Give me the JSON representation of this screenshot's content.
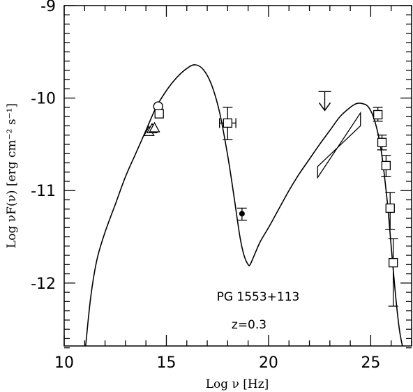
{
  "chart_data": {
    "type": "scatter",
    "title": "",
    "xlabel": "Log ν [Hz]",
    "ylabel": "Log νF(ν) [erg cm⁻² s⁻¹]",
    "xlim": [
      10,
      27
    ],
    "ylim": [
      -12.68,
      -9
    ],
    "x_ticks": [
      "10",
      "15",
      "20",
      "25"
    ],
    "y_ticks": [
      "-9",
      "-10",
      "-11",
      "-12"
    ],
    "annotations": [
      "PG 1553+113",
      "z=0.3"
    ],
    "model_curve": {
      "x": [
        11.05,
        11.3,
        11.6,
        12.0,
        12.5,
        13.0,
        13.5,
        14.0,
        14.5,
        15.0,
        15.5,
        16.0,
        16.4,
        16.8,
        17.2,
        17.6,
        18.0,
        18.3,
        18.6,
        18.8,
        19.0,
        19.1,
        19.3,
        19.6,
        20.0,
        20.5,
        21.0,
        21.5,
        22.0,
        22.5,
        23.0,
        23.5,
        24.0,
        24.3,
        24.6,
        24.9,
        25.2,
        25.5,
        25.8,
        26.0,
        26.2,
        26.4,
        26.55
      ],
      "y": [
        -12.68,
        -12.15,
        -11.75,
        -11.45,
        -11.15,
        -10.85,
        -10.6,
        -10.35,
        -10.1,
        -9.92,
        -9.78,
        -9.68,
        -9.64,
        -9.69,
        -9.85,
        -10.15,
        -10.62,
        -11.05,
        -11.5,
        -11.7,
        -11.8,
        -11.8,
        -11.7,
        -11.55,
        -11.4,
        -11.2,
        -11.0,
        -10.82,
        -10.66,
        -10.5,
        -10.35,
        -10.2,
        -10.1,
        -10.06,
        -10.06,
        -10.1,
        -10.25,
        -10.55,
        -11.1,
        -11.6,
        -12.1,
        -12.5,
        -12.68
      ]
    },
    "series": [
      {
        "name": "",
        "marker": "triangle",
        "points": [
          [
            14.15,
            -10.36
          ],
          [
            14.3,
            -10.33
          ],
          [
            14.42,
            -10.32
          ]
        ]
      },
      {
        "name": "",
        "marker": "circle-open",
        "points": [
          [
            14.6,
            -10.09
          ]
        ]
      },
      {
        "name": "",
        "marker": "square",
        "points": [
          [
            14.65,
            -10.17
          ],
          [
            18.0,
            -10.27
          ],
          [
            25.35,
            -10.18
          ],
          [
            25.55,
            -10.48
          ],
          [
            25.75,
            -10.73
          ],
          [
            25.95,
            -11.19
          ],
          [
            26.1,
            -11.78
          ]
        ]
      },
      {
        "name": "",
        "marker": "dot",
        "points": [
          [
            18.7,
            -11.25
          ]
        ]
      }
    ],
    "error_bars": [
      {
        "x": 18.0,
        "y": -10.27,
        "ylow": -10.45,
        "yhigh": -10.1,
        "xlow": 17.6,
        "xhigh": 18.4
      },
      {
        "x": 18.7,
        "y": -11.25,
        "ylow": -11.32,
        "yhigh": -11.19
      },
      {
        "x": 25.35,
        "y": -10.18,
        "ylow": -10.25,
        "yhigh": -10.1
      },
      {
        "x": 25.55,
        "y": -10.48,
        "ylow": -10.56,
        "yhigh": -10.4
      },
      {
        "x": 25.75,
        "y": -10.73,
        "ylow": -10.85,
        "yhigh": -10.62
      },
      {
        "x": 25.95,
        "y": -11.19,
        "ylow": -11.42,
        "yhigh": -11.02
      },
      {
        "x": 26.1,
        "y": -11.78,
        "ylow": -12.25,
        "yhigh": -11.52
      }
    ],
    "upper_limit": {
      "x": 22.75,
      "y": -9.93
    },
    "bowtie": [
      [
        22.4,
        -10.86
      ],
      [
        24.5,
        -10.16
      ],
      [
        24.5,
        -10.3
      ],
      [
        22.4,
        -10.74
      ]
    ]
  }
}
